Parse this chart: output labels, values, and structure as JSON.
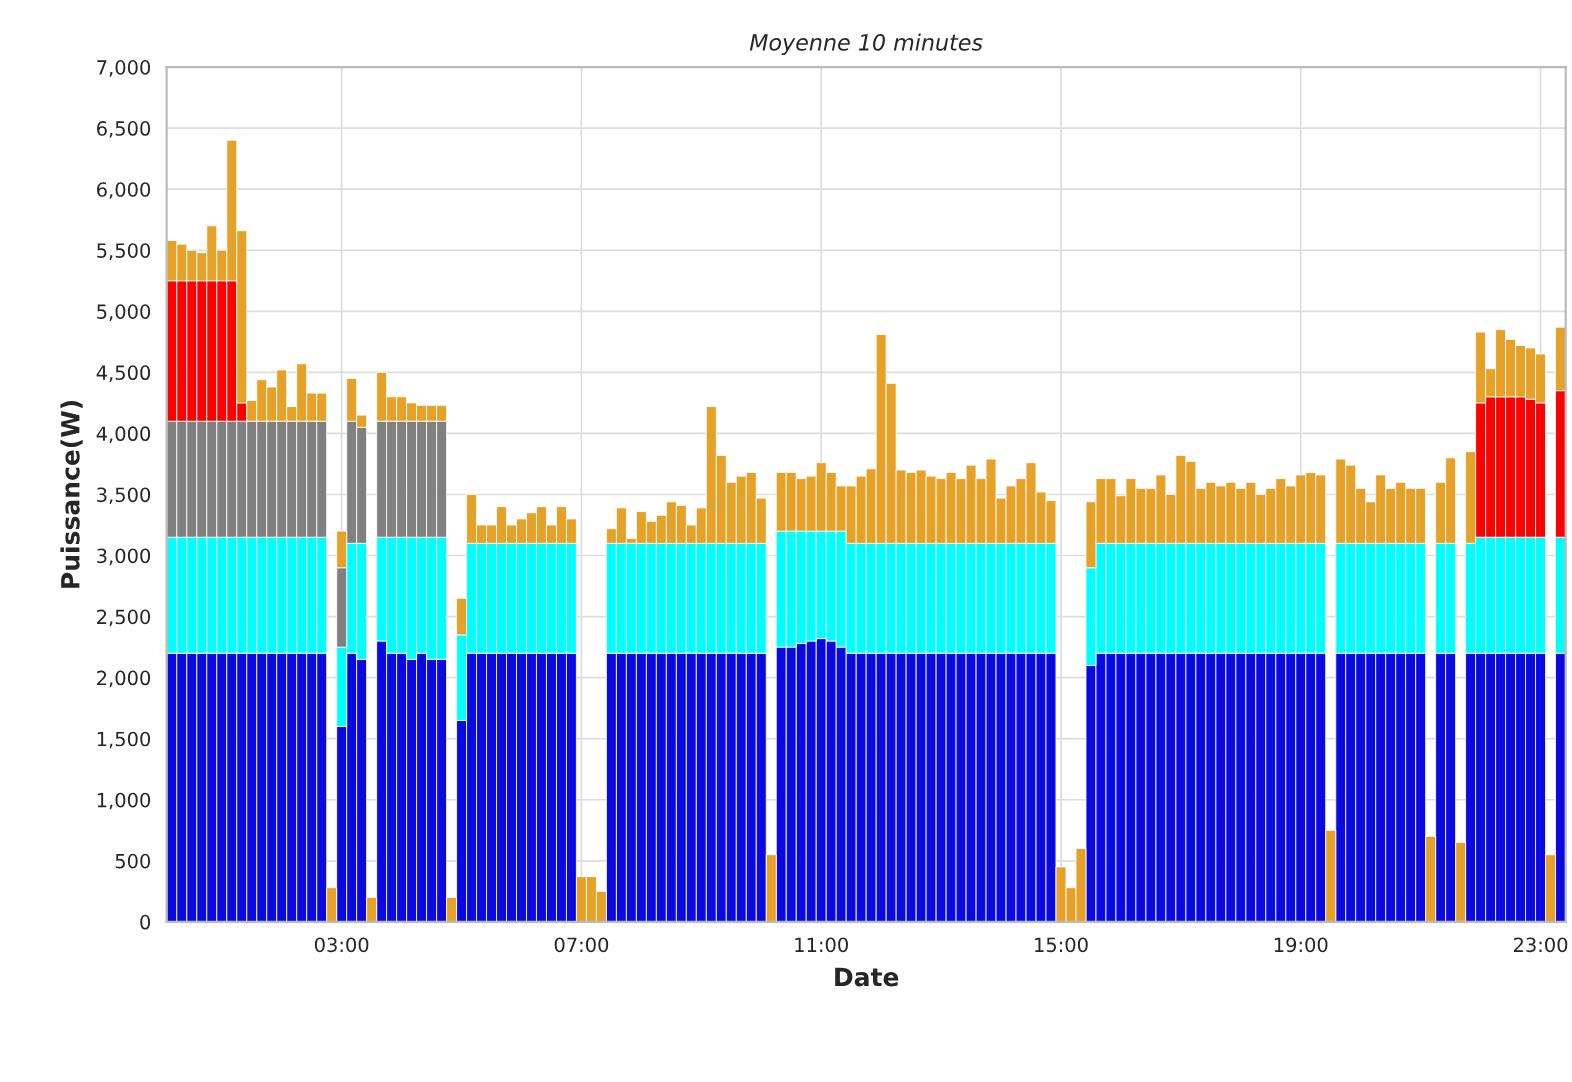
{
  "chart_data": {
    "type": "bar",
    "stacked": true,
    "title": "Moyenne 10 minutes",
    "xlabel": "Date",
    "ylabel": "Puissance(W)",
    "x": [
      0.167,
      0.333,
      0.5,
      0.667,
      0.833,
      1,
      1.167,
      1.333,
      1.5,
      1.667,
      1.833,
      2,
      2.167,
      2.333,
      2.5,
      2.667,
      2.833,
      3,
      3.167,
      3.333,
      3.5,
      3.667,
      3.833,
      4,
      4.167,
      4.333,
      4.5,
      4.667,
      4.833,
      5,
      5.167,
      5.333,
      5.5,
      5.667,
      5.833,
      6,
      6.167,
      6.333,
      6.5,
      6.667,
      6.833,
      7,
      7.167,
      7.333,
      7.5,
      7.667,
      7.833,
      8,
      8.167,
      8.333,
      8.5,
      8.667,
      8.833,
      9,
      9.167,
      9.333,
      9.5,
      9.667,
      9.833,
      10,
      10.167,
      10.333,
      10.5,
      10.667,
      10.833,
      11,
      11.167,
      11.333,
      11.5,
      11.667,
      11.833,
      12,
      12.167,
      12.333,
      12.5,
      12.667,
      12.833,
      13,
      13.167,
      13.333,
      13.5,
      13.667,
      13.833,
      14,
      14.167,
      14.333,
      14.5,
      14.667,
      14.833,
      15,
      15.167,
      15.333,
      15.5,
      15.667,
      15.833,
      16,
      16.167,
      16.333,
      16.5,
      16.667,
      16.833,
      17,
      17.167,
      17.333,
      17.5,
      17.667,
      17.833,
      18,
      18.167,
      18.333,
      18.5,
      18.667,
      18.833,
      19,
      19.167,
      19.333,
      19.5,
      19.667,
      19.833,
      20,
      20.167,
      20.333,
      20.5,
      20.667,
      20.833,
      21,
      21.167,
      21.333,
      21.5,
      21.667,
      21.833,
      22,
      22.167,
      22.333,
      22.5,
      22.667,
      22.833,
      23,
      23.167,
      23.333
    ],
    "series": [
      {
        "color": "#0a0ae0",
        "values": [
          2200,
          2200,
          2200,
          2200,
          2200,
          2200,
          2200,
          2200,
          2200,
          2200,
          2200,
          2200,
          2200,
          2200,
          2200,
          2200,
          null,
          1600,
          2200,
          2150,
          null,
          2300,
          2200,
          2200,
          2150,
          2200,
          2150,
          2150,
          null,
          1650,
          2200,
          2200,
          2200,
          2200,
          2200,
          2200,
          2200,
          2200,
          2200,
          2200,
          2200,
          null,
          null,
          null,
          2200,
          2200,
          2200,
          2200,
          2200,
          2200,
          2200,
          2200,
          2200,
          2200,
          2200,
          2200,
          2200,
          2200,
          2200,
          2200,
          null,
          2250,
          2250,
          2280,
          2300,
          2320,
          2300,
          2250,
          2200,
          2200,
          2200,
          2200,
          2200,
          2200,
          2200,
          2200,
          2200,
          2200,
          2200,
          2200,
          2200,
          2200,
          2200,
          2200,
          2200,
          2200,
          2200,
          2200,
          2200,
          null,
          null,
          null,
          2100,
          2200,
          2200,
          2200,
          2200,
          2200,
          2200,
          2200,
          2200,
          2200,
          2200,
          2200,
          2200,
          2200,
          2200,
          2200,
          2200,
          2200,
          2200,
          2200,
          2200,
          2200,
          2200,
          2200,
          null,
          2200,
          2200,
          2200,
          2200,
          2200,
          2200,
          2200,
          2200,
          2200,
          null,
          2200,
          2200,
          null,
          2200,
          2200,
          2200,
          2200,
          2200,
          2200,
          2200,
          2200,
          null,
          2200
        ]
      },
      {
        "color": "#00ffff",
        "values": [
          950,
          950,
          950,
          950,
          950,
          950,
          950,
          950,
          950,
          950,
          950,
          950,
          950,
          950,
          950,
          950,
          null,
          650,
          900,
          950,
          null,
          850,
          950,
          950,
          1000,
          950,
          1000,
          1000,
          null,
          700,
          900,
          900,
          900,
          900,
          900,
          900,
          900,
          900,
          900,
          900,
          900,
          null,
          null,
          null,
          900,
          900,
          900,
          900,
          900,
          900,
          900,
          900,
          900,
          900,
          900,
          900,
          900,
          900,
          900,
          900,
          null,
          950,
          950,
          920,
          900,
          880,
          900,
          950,
          900,
          900,
          900,
          900,
          900,
          900,
          900,
          900,
          900,
          900,
          900,
          900,
          900,
          900,
          900,
          900,
          900,
          900,
          900,
          900,
          900,
          null,
          null,
          null,
          800,
          900,
          900,
          900,
          900,
          900,
          900,
          900,
          900,
          900,
          900,
          900,
          900,
          900,
          900,
          900,
          900,
          900,
          900,
          900,
          900,
          900,
          900,
          900,
          null,
          900,
          900,
          900,
          900,
          900,
          900,
          900,
          900,
          900,
          null,
          900,
          900,
          null,
          900,
          950,
          950,
          950,
          950,
          950,
          950,
          950,
          null,
          950
        ]
      },
      {
        "color": "#808080",
        "values": [
          950,
          950,
          950,
          950,
          950,
          950,
          950,
          950,
          950,
          950,
          950,
          950,
          950,
          950,
          950,
          950,
          null,
          650,
          1000,
          950,
          null,
          950,
          950,
          950,
          950,
          950,
          950,
          950,
          null,
          null,
          null,
          null,
          null,
          null,
          null,
          null,
          null,
          null,
          null,
          null,
          null,
          null,
          null,
          null,
          null,
          null,
          null,
          null,
          null,
          null,
          null,
          null,
          null,
          null,
          null,
          null,
          null,
          null,
          null,
          null,
          null,
          null,
          null,
          null,
          null,
          null,
          null,
          null,
          null,
          null,
          null,
          null,
          null,
          null,
          null,
          null,
          null,
          null,
          null,
          null,
          null,
          null,
          null,
          null,
          null,
          null,
          null,
          null,
          null,
          null,
          null,
          null,
          null,
          null,
          null,
          null,
          null,
          null,
          null,
          null,
          null,
          null,
          null,
          null,
          null,
          null,
          null,
          null,
          null,
          null,
          null,
          null,
          null,
          null,
          null,
          null,
          null,
          null,
          null,
          null,
          null,
          null,
          null,
          null,
          null,
          null,
          null,
          null,
          null,
          null,
          null,
          null,
          null,
          null,
          null,
          null,
          null,
          null,
          null,
          null
        ]
      },
      {
        "color": "#ff0000",
        "values": [
          1150,
          1150,
          1150,
          1150,
          1150,
          1150,
          1150,
          150,
          null,
          null,
          null,
          null,
          null,
          null,
          null,
          null,
          null,
          null,
          null,
          null,
          null,
          null,
          null,
          null,
          null,
          null,
          null,
          null,
          null,
          null,
          null,
          null,
          null,
          null,
          null,
          null,
          null,
          null,
          null,
          null,
          null,
          null,
          null,
          null,
          null,
          null,
          null,
          null,
          null,
          null,
          null,
          null,
          null,
          null,
          null,
          null,
          null,
          null,
          null,
          null,
          null,
          null,
          null,
          null,
          null,
          null,
          null,
          null,
          null,
          null,
          null,
          null,
          null,
          null,
          null,
          null,
          null,
          null,
          null,
          null,
          null,
          null,
          null,
          null,
          null,
          null,
          null,
          null,
          null,
          null,
          null,
          null,
          null,
          null,
          null,
          null,
          null,
          null,
          null,
          null,
          null,
          null,
          null,
          null,
          null,
          null,
          null,
          null,
          null,
          null,
          null,
          null,
          null,
          null,
          null,
          null,
          null,
          null,
          null,
          null,
          null,
          null,
          null,
          null,
          null,
          null,
          null,
          null,
          null,
          null,
          null,
          1100,
          1150,
          1150,
          1150,
          1150,
          1130,
          1100,
          null,
          1200
        ]
      },
      {
        "color": "#e5a128",
        "values": [
          330,
          300,
          250,
          230,
          450,
          250,
          1150,
          1410,
          170,
          340,
          280,
          420,
          120,
          470,
          230,
          230,
          280,
          300,
          350,
          100,
          200,
          400,
          200,
          200,
          150,
          130,
          130,
          130,
          200,
          300,
          400,
          150,
          150,
          300,
          150,
          200,
          250,
          300,
          150,
          300,
          200,
          370,
          370,
          250,
          120,
          290,
          40,
          260,
          180,
          230,
          340,
          310,
          150,
          290,
          1120,
          720,
          500,
          550,
          580,
          370,
          550,
          480,
          480,
          430,
          450,
          560,
          480,
          370,
          470,
          550,
          610,
          1710,
          1310,
          600,
          580,
          600,
          550,
          530,
          580,
          530,
          640,
          530,
          690,
          370,
          470,
          530,
          660,
          420,
          350,
          450,
          280,
          600,
          540,
          530,
          530,
          390,
          530,
          450,
          450,
          560,
          400,
          720,
          670,
          450,
          500,
          470,
          500,
          450,
          500,
          400,
          450,
          530,
          470,
          560,
          580,
          560,
          750,
          690,
          640,
          450,
          340,
          560,
          450,
          500,
          450,
          450,
          700,
          500,
          700,
          650,
          750,
          580,
          230,
          550,
          470,
          420,
          420,
          400,
          550,
          520
        ]
      }
    ],
    "xlim": [
      0.08,
      23.42
    ],
    "xticks": [
      {
        "value": 3,
        "label": "03:00"
      },
      {
        "value": 7,
        "label": "07:00"
      },
      {
        "value": 11,
        "label": "11:00"
      },
      {
        "value": 15,
        "label": "15:00"
      },
      {
        "value": 19,
        "label": "19:00"
      },
      {
        "value": 23,
        "label": "23:00"
      }
    ],
    "ylim": [
      0,
      7000
    ],
    "yticks": [
      0,
      500,
      {
        "value": 1000,
        "label": "1,000"
      },
      {
        "value": 1500,
        "label": "1,500"
      },
      {
        "value": 2000,
        "label": "2,000"
      },
      {
        "value": 2500,
        "label": "2,500"
      },
      {
        "value": 3000,
        "label": "3,000"
      },
      {
        "value": 3500,
        "label": "3,500"
      },
      {
        "value": 4000,
        "label": "4,000"
      },
      {
        "value": 4500,
        "label": "4,500"
      },
      {
        "value": 5000,
        "label": "5,000"
      },
      {
        "value": 5500,
        "label": "5,500"
      },
      {
        "value": 6000,
        "label": "6,000"
      },
      {
        "value": 6500,
        "label": "6,500"
      },
      {
        "value": 7000,
        "label": "7,000"
      }
    ],
    "grid": true
  }
}
